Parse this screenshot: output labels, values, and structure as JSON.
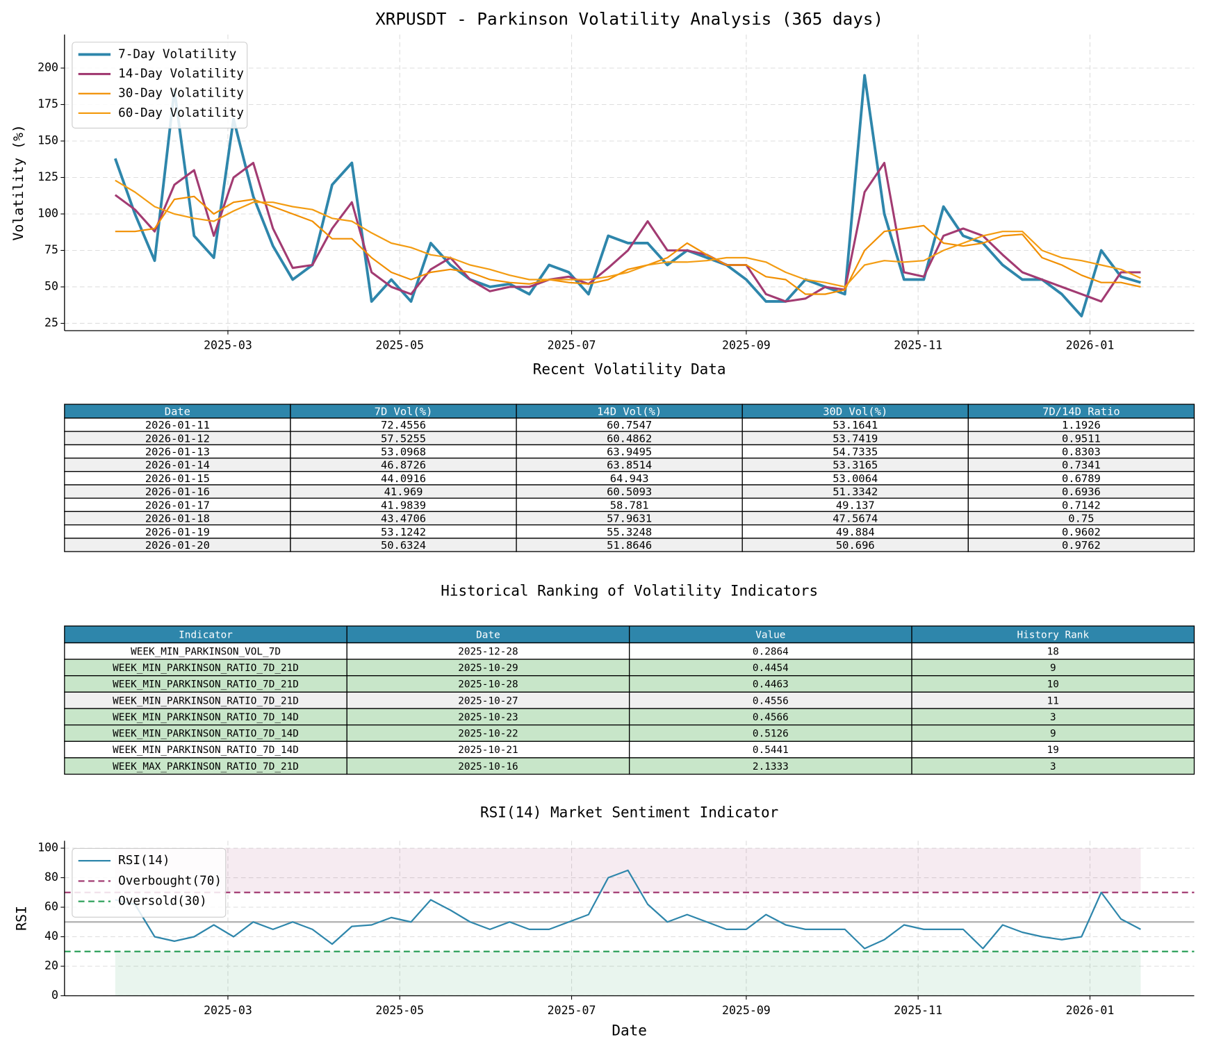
{
  "chart_data": [
    {
      "type": "line",
      "title": "XRPUSDT - Parkinson Volatility Analysis (365 days)",
      "y_label": "Volatility (%)",
      "x": [
        "2025-01-20",
        "2025-01-27",
        "2025-02-03",
        "2025-02-10",
        "2025-02-17",
        "2025-02-24",
        "2025-03-03",
        "2025-03-10",
        "2025-03-17",
        "2025-03-24",
        "2025-03-31",
        "2025-04-07",
        "2025-04-14",
        "2025-04-21",
        "2025-04-28",
        "2025-05-05",
        "2025-05-12",
        "2025-05-19",
        "2025-05-26",
        "2025-06-02",
        "2025-06-09",
        "2025-06-16",
        "2025-06-23",
        "2025-06-30",
        "2025-07-07",
        "2025-07-14",
        "2025-07-21",
        "2025-07-28",
        "2025-08-04",
        "2025-08-11",
        "2025-08-18",
        "2025-08-25",
        "2025-09-01",
        "2025-09-08",
        "2025-09-15",
        "2025-09-22",
        "2025-09-29",
        "2025-10-06",
        "2025-10-13",
        "2025-10-20",
        "2025-10-27",
        "2025-11-03",
        "2025-11-10",
        "2025-11-17",
        "2025-11-24",
        "2025-12-01",
        "2025-12-08",
        "2025-12-15",
        "2025-12-22",
        "2025-12-29",
        "2026-01-05",
        "2026-01-12",
        "2026-01-19"
      ],
      "series": [
        {
          "name": "7-Day Volatility",
          "color": "#2e86ab",
          "line_width": 3.5,
          "values": [
            138,
            100,
            68,
            185,
            85,
            70,
            165,
            112,
            78,
            55,
            65,
            120,
            135,
            40,
            55,
            40,
            80,
            65,
            55,
            50,
            52,
            45,
            65,
            60,
            45,
            85,
            80,
            80,
            65,
            75,
            70,
            65,
            55,
            40,
            40,
            55,
            50,
            45,
            195,
            100,
            55,
            55,
            105,
            85,
            80,
            65,
            55,
            55,
            45,
            30,
            75,
            57,
            53
          ]
        },
        {
          "name": "14-Day Volatility",
          "color": "#a23b72",
          "line_width": 2.8,
          "values": [
            113,
            103,
            88,
            120,
            130,
            85,
            125,
            135,
            90,
            63,
            65,
            90,
            108,
            60,
            50,
            45,
            62,
            70,
            55,
            47,
            50,
            50,
            55,
            57,
            52,
            63,
            75,
            95,
            75,
            75,
            72,
            65,
            65,
            45,
            40,
            42,
            50,
            48,
            115,
            135,
            60,
            57,
            85,
            90,
            85,
            72,
            60,
            55,
            50,
            45,
            40,
            60,
            60
          ]
        },
        {
          "name": "30-Day Volatility",
          "color": "#f18f01",
          "line_width": 2,
          "values": [
            88,
            88,
            90,
            110,
            112,
            100,
            108,
            110,
            105,
            100,
            95,
            83,
            83,
            70,
            60,
            55,
            60,
            62,
            60,
            55,
            53,
            52,
            55,
            53,
            52,
            55,
            62,
            65,
            70,
            80,
            72,
            65,
            65,
            57,
            55,
            45,
            45,
            48,
            75,
            88,
            90,
            92,
            80,
            78,
            80,
            85,
            86,
            70,
            65,
            58,
            53,
            53,
            50
          ]
        },
        {
          "name": "60-Day Volatility",
          "color": "#f39c12",
          "line_width": 2,
          "values": [
            123,
            115,
            105,
            100,
            97,
            95,
            102,
            108,
            108,
            105,
            103,
            97,
            95,
            87,
            80,
            77,
            72,
            70,
            65,
            62,
            58,
            55,
            55,
            55,
            55,
            57,
            60,
            65,
            67,
            67,
            68,
            70,
            70,
            67,
            60,
            55,
            53,
            50,
            65,
            68,
            67,
            68,
            75,
            80,
            85,
            88,
            88,
            75,
            70,
            68,
            65,
            62,
            56
          ]
        }
      ],
      "xlim": [
        "2025-01-02",
        "2026-02-07"
      ],
      "xticks": [
        {
          "value": "2025-03-01",
          "label": "2025-03"
        },
        {
          "value": "2025-05-01",
          "label": "2025-05"
        },
        {
          "value": "2025-07-01",
          "label": "2025-07"
        },
        {
          "value": "2025-09-01",
          "label": "2025-09"
        },
        {
          "value": "2025-11-01",
          "label": "2025-11"
        },
        {
          "value": "2026-01-01",
          "label": "2026-01"
        }
      ],
      "ylim": [
        20,
        223
      ],
      "yticks": [
        25,
        50,
        75,
        100,
        125,
        150,
        175,
        200
      ],
      "grid": true,
      "legend": "upper left"
    },
    {
      "type": "line",
      "title": "RSI(14) Market Sentiment Indicator",
      "x_label": "Date",
      "y_label": "RSI",
      "x": [
        "2025-01-20",
        "2025-01-27",
        "2025-02-03",
        "2025-02-10",
        "2025-02-17",
        "2025-02-24",
        "2025-03-03",
        "2025-03-10",
        "2025-03-17",
        "2025-03-24",
        "2025-03-31",
        "2025-04-07",
        "2025-04-14",
        "2025-04-21",
        "2025-04-28",
        "2025-05-05",
        "2025-05-12",
        "2025-05-19",
        "2025-05-26",
        "2025-06-02",
        "2025-06-09",
        "2025-06-16",
        "2025-06-23",
        "2025-06-30",
        "2025-07-07",
        "2025-07-14",
        "2025-07-21",
        "2025-07-28",
        "2025-08-04",
        "2025-08-11",
        "2025-08-18",
        "2025-08-25",
        "2025-09-01",
        "2025-09-08",
        "2025-09-15",
        "2025-09-22",
        "2025-09-29",
        "2025-10-06",
        "2025-10-13",
        "2025-10-20",
        "2025-10-27",
        "2025-11-03",
        "2025-11-10",
        "2025-11-17",
        "2025-11-24",
        "2025-12-01",
        "2025-12-08",
        "2025-12-15",
        "2025-12-22",
        "2025-12-29",
        "2026-01-05",
        "2026-01-12",
        "2026-01-19"
      ],
      "series": [
        {
          "name": "RSI(14)",
          "color": "#2e86ab",
          "line_width": 2,
          "values": [
            65,
            62,
            40,
            37,
            40,
            48,
            40,
            50,
            45,
            50,
            45,
            35,
            47,
            48,
            53,
            50,
            65,
            58,
            50,
            45,
            50,
            45,
            45,
            50,
            55,
            80,
            85,
            62,
            50,
            55,
            50,
            45,
            45,
            55,
            48,
            45,
            45,
            45,
            32,
            38,
            48,
            45,
            45,
            45,
            32,
            48,
            43,
            40,
            38,
            40,
            70,
            52,
            45
          ]
        }
      ],
      "thresholds": [
        {
          "name": "Overbought(70)",
          "value": 70,
          "color": "#a23b72"
        },
        {
          "name": "Oversold(30)",
          "value": 30,
          "color": "#2ca05a"
        }
      ],
      "zones": [
        {
          "range": [
            70,
            100
          ],
          "color": "#a23b72"
        },
        {
          "range": [
            0,
            30
          ],
          "color": "#2ca05a"
        }
      ],
      "reference_lines": [
        {
          "value": 50,
          "color": "#b0b0b0"
        }
      ],
      "xlim": [
        "2025-01-02",
        "2026-02-07"
      ],
      "xticks": [
        {
          "value": "2025-03-01",
          "label": "2025-03"
        },
        {
          "value": "2025-05-01",
          "label": "2025-05"
        },
        {
          "value": "2025-07-01",
          "label": "2025-07"
        },
        {
          "value": "2025-09-01",
          "label": "2025-09"
        },
        {
          "value": "2025-11-01",
          "label": "2025-11"
        },
        {
          "value": "2026-01-01",
          "label": "2026-01"
        }
      ],
      "ylim": [
        0,
        105
      ],
      "yticks": [
        0,
        20,
        40,
        60,
        80,
        100
      ],
      "grid": true,
      "legend": "upper left"
    }
  ],
  "tables": [
    {
      "title": "Recent Volatility Data",
      "header_color": "#2e86ab",
      "columns": [
        "Date",
        "7D Vol(%)",
        "14D Vol(%)",
        "30D Vol(%)",
        "7D/14D Ratio"
      ],
      "rows": [
        [
          "2026-01-11",
          72.4556,
          60.7547,
          53.1641,
          1.1926
        ],
        [
          "2026-01-12",
          57.5255,
          60.4862,
          53.7419,
          0.9511
        ],
        [
          "2026-01-13",
          53.0968,
          63.9495,
          54.7335,
          0.8303
        ],
        [
          "2026-01-14",
          46.8726,
          63.8514,
          53.3165,
          0.7341
        ],
        [
          "2026-01-15",
          44.0916,
          64.943,
          53.0064,
          0.6789
        ],
        [
          "2026-01-16",
          41.969,
          60.5093,
          51.3342,
          0.6936
        ],
        [
          "2026-01-17",
          41.9839,
          58.781,
          49.137,
          0.7142
        ],
        [
          "2026-01-18",
          43.4706,
          57.9631,
          47.5674,
          0.75
        ],
        [
          "2026-01-19",
          53.1242,
          55.3248,
          49.884,
          0.9602
        ],
        [
          "2026-01-20",
          50.6324,
          51.8646,
          50.696,
          0.9762
        ]
      ],
      "row_colors": [
        "#ffffff",
        "#f0f0f0",
        "#ffffff",
        "#f0f0f0",
        "#ffffff",
        "#f0f0f0",
        "#ffffff",
        "#f0f0f0",
        "#ffffff",
        "#f0f0f0"
      ]
    },
    {
      "title": "Historical Ranking of Volatility Indicators",
      "header_color": "#2e86ab",
      "columns": [
        "Indicator",
        "Date",
        "Value",
        "History Rank"
      ],
      "rows": [
        [
          "WEEK_MIN_PARKINSON_VOL_7D",
          "2025-12-28",
          0.2864,
          18
        ],
        [
          "WEEK_MIN_PARKINSON_RATIO_7D_21D",
          "2025-10-29",
          0.4454,
          9
        ],
        [
          "WEEK_MIN_PARKINSON_RATIO_7D_21D",
          "2025-10-28",
          0.4463,
          10
        ],
        [
          "WEEK_MIN_PARKINSON_RATIO_7D_21D",
          "2025-10-27",
          0.4556,
          11
        ],
        [
          "WEEK_MIN_PARKINSON_RATIO_7D_14D",
          "2025-10-23",
          0.4566,
          3
        ],
        [
          "WEEK_MIN_PARKINSON_RATIO_7D_14D",
          "2025-10-22",
          0.5126,
          9
        ],
        [
          "WEEK_MIN_PARKINSON_RATIO_7D_14D",
          "2025-10-21",
          0.5441,
          19
        ],
        [
          "WEEK_MAX_PARKINSON_RATIO_7D_21D",
          "2025-10-16",
          2.1333,
          3
        ]
      ],
      "row_colors": [
        "#ffffff",
        "#c8e6c9",
        "#c8e6c9",
        "#f0f0f0",
        "#c8e6c9",
        "#c8e6c9",
        "#ffffff",
        "#c8e6c9"
      ]
    }
  ]
}
